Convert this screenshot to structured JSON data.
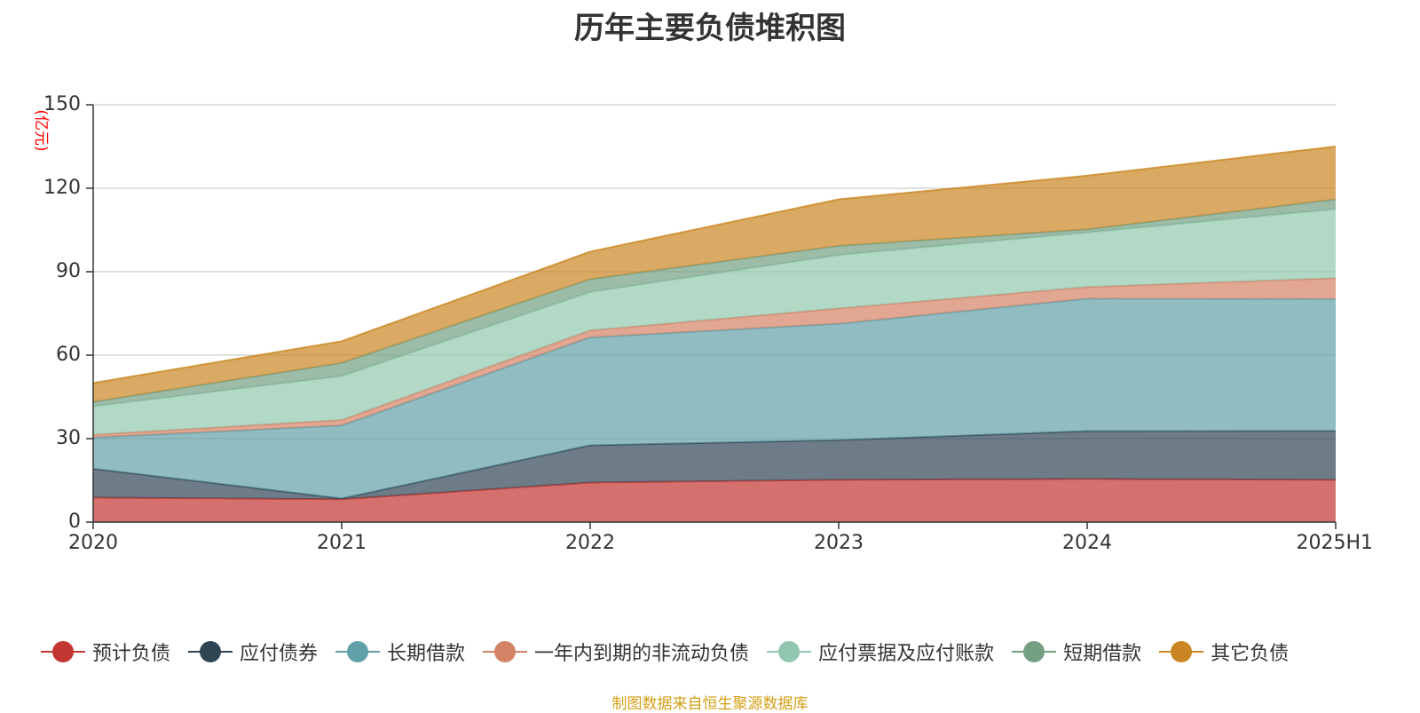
{
  "title": "历年主要负债堆积图",
  "source": "制图数据来自恒生聚源数据库",
  "chart_data": {
    "type": "area",
    "stacked": true,
    "title": "历年主要负债堆积图",
    "ylabel": "(亿元)",
    "xlabel": "",
    "categories": [
      "2020",
      "2021",
      "2022",
      "2023",
      "2024",
      "2025H1"
    ],
    "ylim": [
      0,
      150
    ],
    "yticks": [
      0,
      30,
      60,
      90,
      120,
      150
    ],
    "grid": true,
    "legend_position": "bottom",
    "series": [
      {
        "name": "预计负债",
        "color": "#c23531",
        "values": [
          8.8,
          8.2,
          14.2,
          15.2,
          15.5,
          15.2
        ]
      },
      {
        "name": "应付债券",
        "color": "#2f4554",
        "values": [
          10.4,
          0.3,
          13.4,
          14.3,
          17.2,
          17.6
        ]
      },
      {
        "name": "长期借款",
        "color": "#61a0a8",
        "values": [
          11.2,
          26.2,
          38.8,
          41.8,
          47.6,
          47.4
        ]
      },
      {
        "name": "一年内到期的非流动负债",
        "color": "#d48265",
        "values": [
          1.0,
          2.0,
          2.5,
          5.5,
          4.2,
          7.5
        ]
      },
      {
        "name": "应付票据及应付账款",
        "color": "#91c7ae",
        "values": [
          10.2,
          15.8,
          13.8,
          19.2,
          19.6,
          24.8
        ]
      },
      {
        "name": "短期借款",
        "color": "#749f83",
        "values": [
          1.6,
          4.7,
          4.6,
          3.3,
          1.1,
          3.5
        ]
      },
      {
        "name": "其它负债",
        "color": "#ca8622",
        "values": [
          6.8,
          7.8,
          9.9,
          16.7,
          19.3,
          19.0
        ]
      }
    ]
  }
}
